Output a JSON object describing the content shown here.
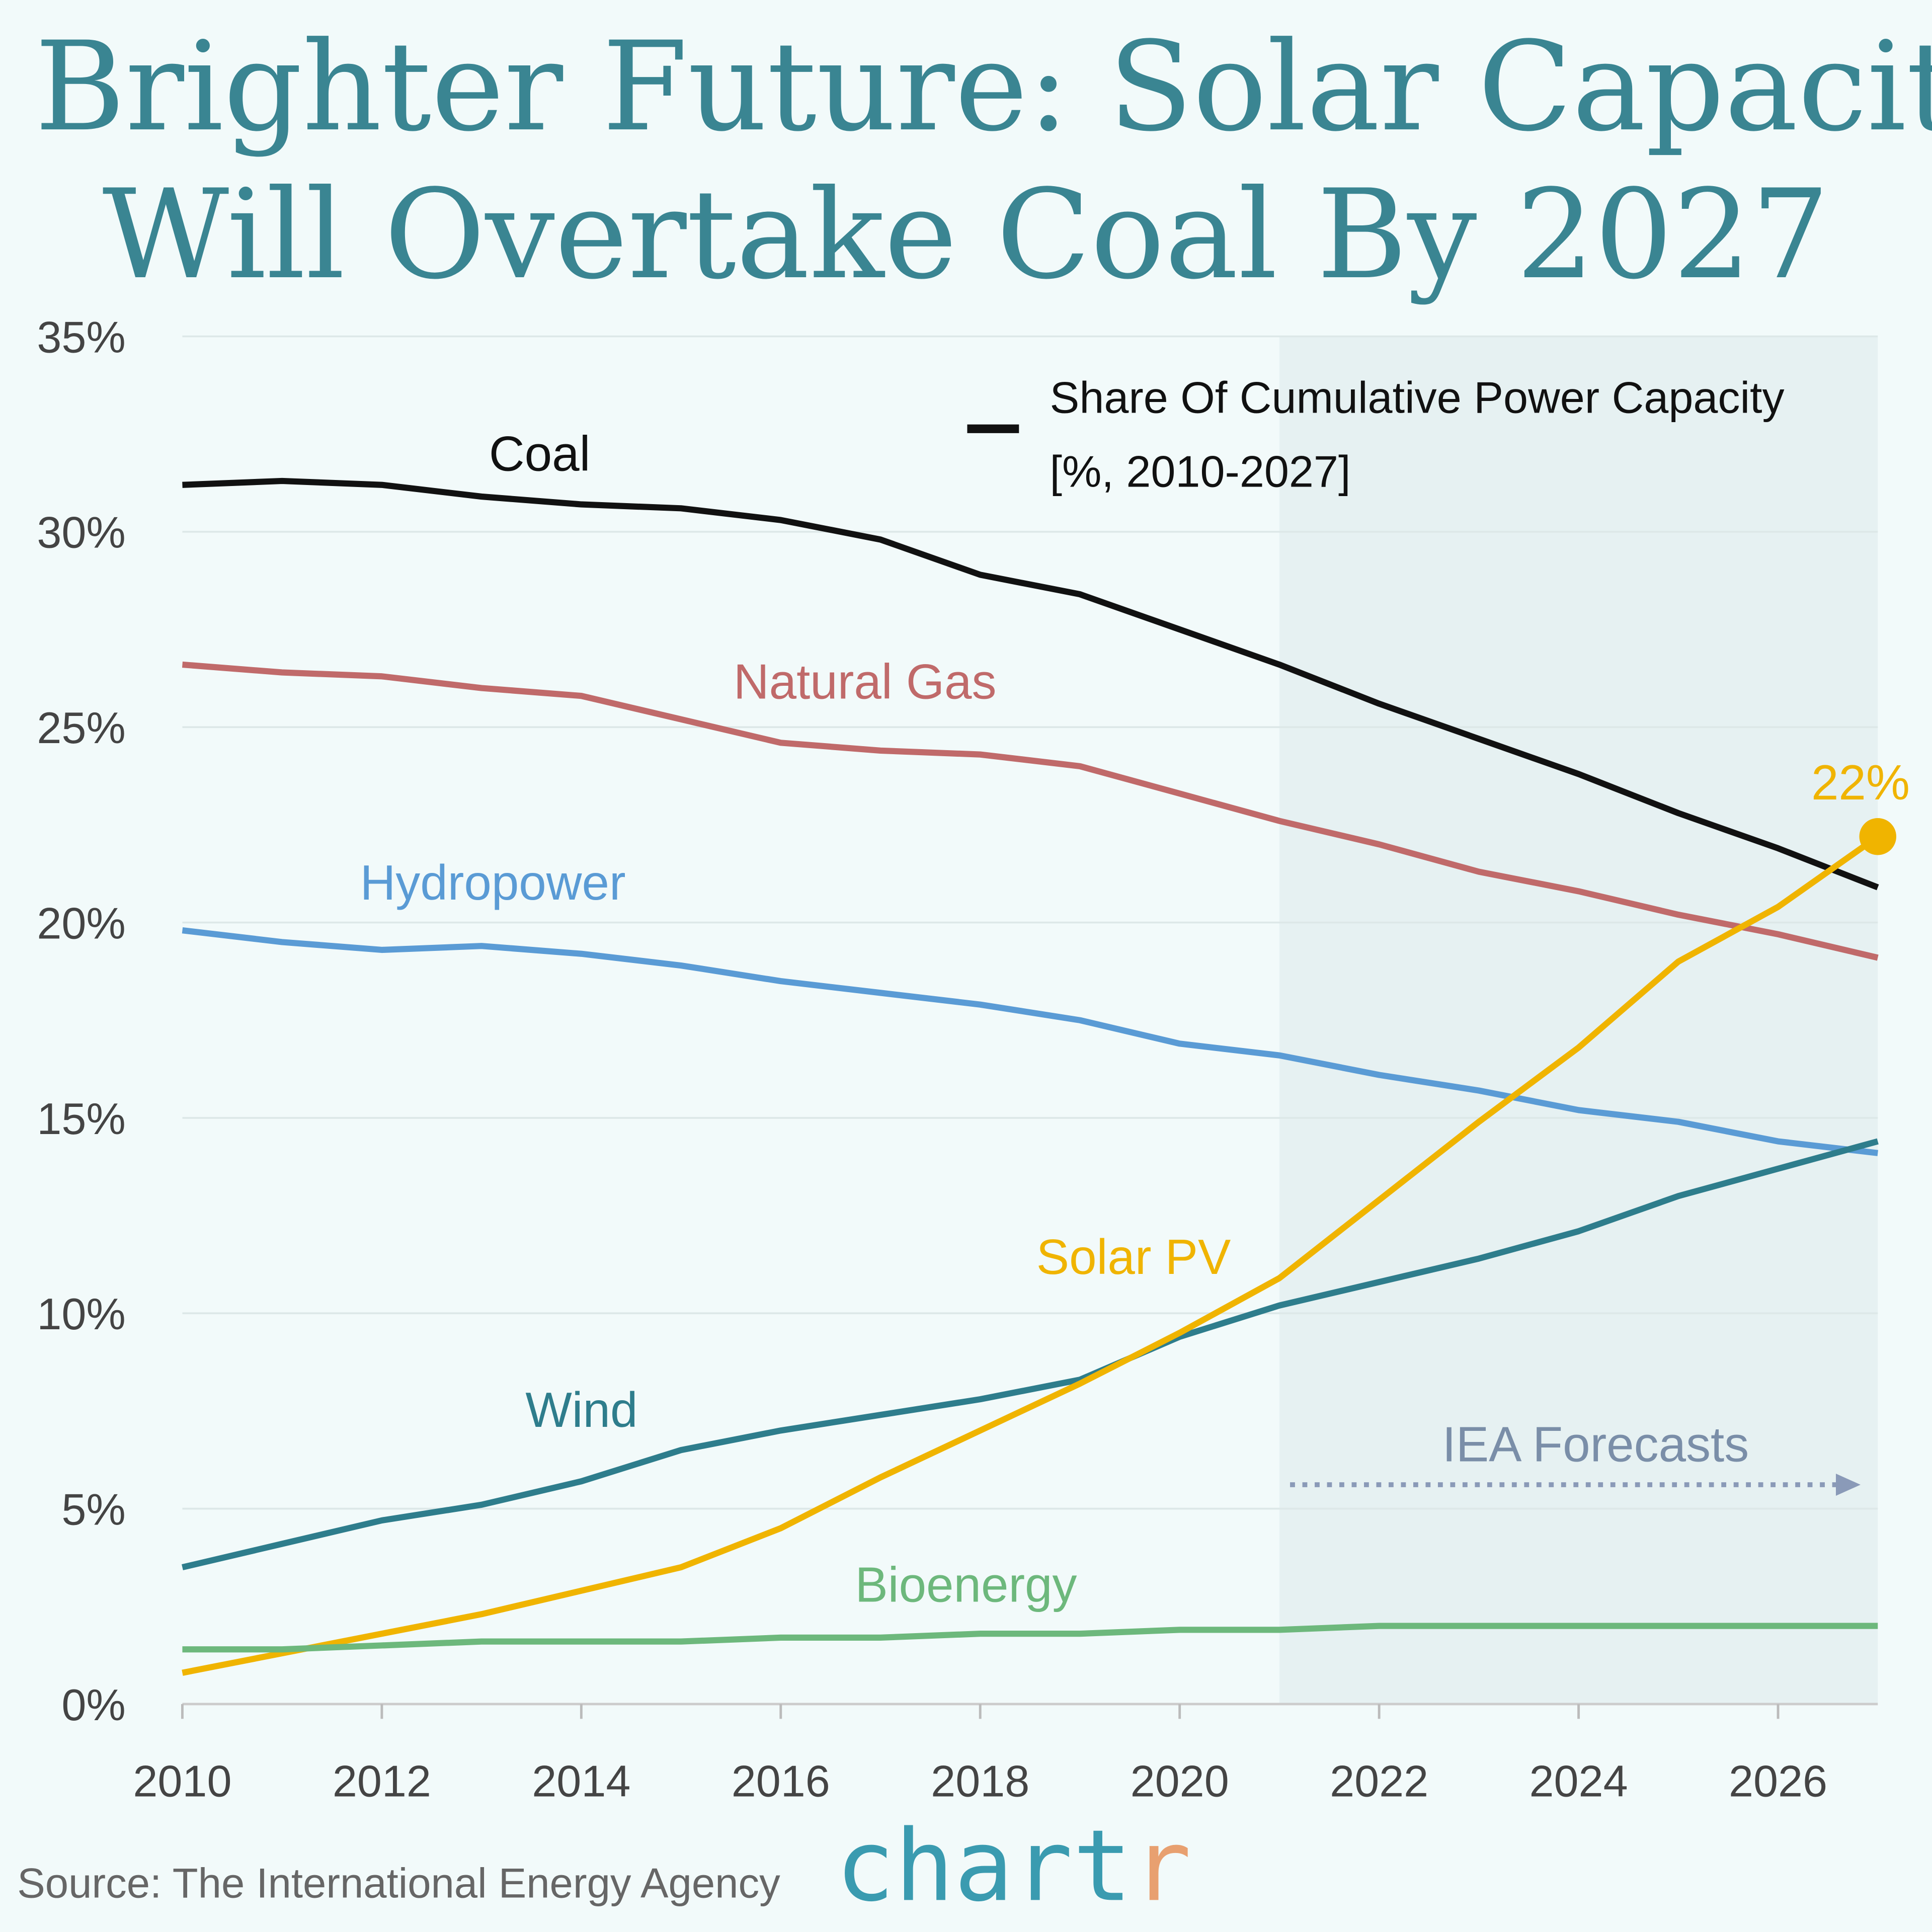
{
  "title_line1": "A Brighter Future: Solar Capacity",
  "title_line2": "Will Overtake Coal By 2027",
  "source": "Source: The International Energy Agency",
  "logo": {
    "main": "chart",
    "accent": "r",
    "main_color": "#3a9bb0",
    "accent_color": "#e8a070"
  },
  "chart_data": {
    "type": "line",
    "title": "Share Of Cumulative Power Capacity",
    "subtitle": "[%, 2010-2027]",
    "x": [
      2010,
      2011,
      2012,
      2013,
      2014,
      2015,
      2016,
      2017,
      2018,
      2019,
      2020,
      2021,
      2022,
      2023,
      2024,
      2025,
      2026,
      2027
    ],
    "xlim": [
      2010,
      2027
    ],
    "ylim": [
      0,
      35
    ],
    "x_ticks": [
      "2010",
      "2012",
      "2014",
      "2016",
      "2018",
      "2020",
      "2022",
      "2024",
      "2026"
    ],
    "y_ticks": [
      "0%",
      "5%",
      "10%",
      "15%",
      "20%",
      "25%",
      "30%",
      "35%"
    ],
    "grid": true,
    "forecast_region": {
      "from": 2021,
      "to": 2027,
      "label": "IEA Forecasts"
    },
    "annotation": {
      "series": "Solar PV",
      "x": 2027,
      "label": "22%"
    },
    "series": [
      {
        "name": "Coal",
        "color": "#111111",
        "values": [
          31.2,
          31.3,
          31.2,
          30.9,
          30.7,
          30.6,
          30.3,
          29.8,
          28.9,
          28.4,
          27.5,
          26.6,
          25.6,
          24.7,
          23.8,
          22.8,
          21.9,
          20.9
        ]
      },
      {
        "name": "Natural Gas",
        "color": "#c06a6a",
        "values": [
          26.6,
          26.4,
          26.3,
          26.0,
          25.8,
          25.2,
          24.6,
          24.4,
          24.3,
          24.0,
          23.3,
          22.6,
          22.0,
          21.3,
          20.8,
          20.2,
          19.7,
          19.1
        ]
      },
      {
        "name": "Hydropower",
        "color": "#5a9bd5",
        "values": [
          19.8,
          19.5,
          19.3,
          19.4,
          19.2,
          18.9,
          18.5,
          18.2,
          17.9,
          17.5,
          16.9,
          16.6,
          16.1,
          15.7,
          15.2,
          14.9,
          14.4,
          14.1
        ]
      },
      {
        "name": "Wind",
        "color": "#2e7d8c",
        "values": [
          3.5,
          4.1,
          4.7,
          5.1,
          5.7,
          6.5,
          7.0,
          7.4,
          7.8,
          8.3,
          9.4,
          10.2,
          10.8,
          11.4,
          12.1,
          13.0,
          13.7,
          14.4
        ]
      },
      {
        "name": "Solar PV",
        "color": "#f0b400",
        "values": [
          0.8,
          1.3,
          1.8,
          2.3,
          2.9,
          3.5,
          4.5,
          5.8,
          7.0,
          8.2,
          9.5,
          10.9,
          12.9,
          14.9,
          16.8,
          19.0,
          20.4,
          22.2
        ]
      },
      {
        "name": "Bioenergy",
        "color": "#6db87c",
        "values": [
          1.4,
          1.4,
          1.5,
          1.6,
          1.6,
          1.6,
          1.7,
          1.7,
          1.8,
          1.8,
          1.9,
          1.9,
          2.0,
          2.0,
          2.0,
          2.0,
          2.0,
          2.0
        ]
      }
    ]
  }
}
